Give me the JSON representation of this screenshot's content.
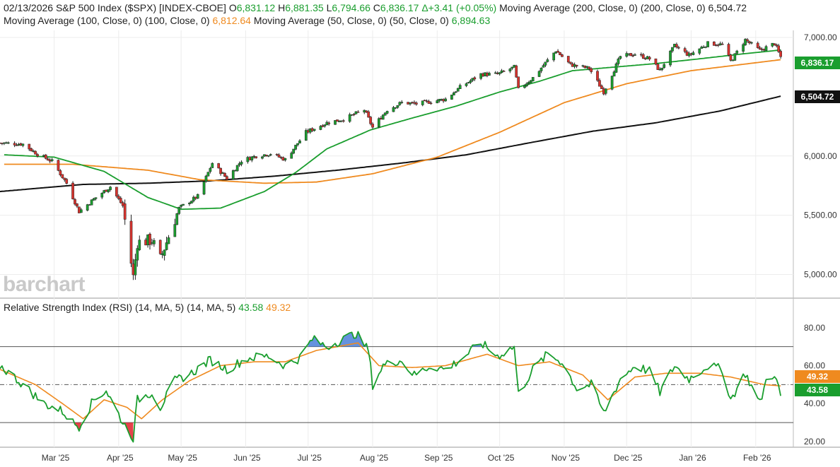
{
  "header": {
    "line1_label": "02/13/2026 S&P 500 Index ($SPX) [INDEX-CBOE] ",
    "o_prefix": "O",
    "o": "6,831.12",
    "h_prefix": "H",
    "h": "6,881.35",
    "l_prefix": "L",
    "l": "6,794.66",
    "c_prefix": "C",
    "c": "6,836.17",
    "change": "Δ+3.41 (+0.05%)",
    "ma200_label": "Moving Average (200, Close, 0) (200, Close, 0)",
    "ma200": "6,504.72",
    "ma100_label": "Moving Average (100, Close, 0) (100, Close, 0)",
    "ma100": "6,812.64",
    "ma50_label": "Moving Average (50, Close, 0) (50, Close, 0)",
    "ma50": "6,894.63"
  },
  "rsi_header": {
    "label": "Relative Strength Index (RSI) (14, MA, 5) (14, MA, 5)",
    "rsi": "43.58",
    "ma": "49.32"
  },
  "watermark": "barchart",
  "tags": {
    "close": "6,836.17",
    "ma200": "6,504.72",
    "rsi": "43.58",
    "rsi_ma": "49.32"
  },
  "colors": {
    "up": "#1a9e2e",
    "down": "#d9332e",
    "ma50": "#1a9e2e",
    "ma100": "#ef8a1f",
    "ma200": "#111111",
    "overbought": "#4a7fd8",
    "oversold": "#e0202a"
  },
  "chart_data": [
    {
      "type": "candlestick",
      "title": "S&P 500 Index ($SPX)",
      "ylim": [
        4800,
        7060
      ],
      "y_ticks": [
        "5,000.00",
        "5,500.00",
        "6,000.00",
        "7,000.00"
      ],
      "x_ticks": [
        "Mar '25",
        "Apr '25",
        "May '25",
        "Jun '25",
        "Jul '25",
        "Aug '25",
        "Sep '25",
        "Oct '25",
        "Nov '25",
        "Dec '25",
        "Jan '26",
        "Feb '26"
      ],
      "close_path": [
        [
          "2025-02-03",
          6110
        ],
        [
          "2025-02-14",
          6100
        ],
        [
          "2025-02-21",
          6015
        ],
        [
          "2025-02-28",
          5955
        ],
        [
          "2025-03-07",
          5770
        ],
        [
          "2025-03-13",
          5530
        ],
        [
          "2025-03-21",
          5650
        ],
        [
          "2025-03-28",
          5740
        ],
        [
          "2025-04-03",
          5580
        ],
        [
          "2025-04-08",
          4980
        ],
        [
          "2025-04-10",
          5270
        ],
        [
          "2025-04-17",
          5290
        ],
        [
          "2025-04-21",
          5130
        ],
        [
          "2025-04-30",
          5560
        ],
        [
          "2025-05-09",
          5660
        ],
        [
          "2025-05-16",
          5940
        ],
        [
          "2025-05-23",
          5810
        ],
        [
          "2025-05-30",
          5960
        ],
        [
          "2025-06-06",
          6000
        ],
        [
          "2025-06-13",
          6020
        ],
        [
          "2025-06-20",
          5970
        ],
        [
          "2025-06-30",
          6200
        ],
        [
          "2025-07-10",
          6280
        ],
        [
          "2025-07-18",
          6310
        ],
        [
          "2025-07-28",
          6390
        ],
        [
          "2025-08-01",
          6240
        ],
        [
          "2025-08-08",
          6390
        ],
        [
          "2025-08-15",
          6450
        ],
        [
          "2025-08-22",
          6440
        ],
        [
          "2025-08-29",
          6460
        ],
        [
          "2025-09-05",
          6480
        ],
        [
          "2025-09-12",
          6580
        ],
        [
          "2025-09-22",
          6690
        ],
        [
          "2025-09-30",
          6690
        ],
        [
          "2025-10-08",
          6750
        ],
        [
          "2025-10-10",
          6560
        ],
        [
          "2025-10-17",
          6660
        ],
        [
          "2025-10-28",
          6890
        ],
        [
          "2025-11-04",
          6770
        ],
        [
          "2025-11-13",
          6740
        ],
        [
          "2025-11-20",
          6540
        ],
        [
          "2025-11-28",
          6840
        ],
        [
          "2025-12-05",
          6860
        ],
        [
          "2025-12-12",
          6820
        ],
        [
          "2025-12-17",
          6720
        ],
        [
          "2025-12-24",
          6930
        ],
        [
          "2025-12-31",
          6850
        ],
        [
          "2026-01-09",
          6950
        ],
        [
          "2026-01-16",
          6940
        ],
        [
          "2026-01-20",
          6800
        ],
        [
          "2026-01-27",
          6980
        ],
        [
          "2026-02-03",
          6890
        ],
        [
          "2026-02-10",
          6950
        ],
        [
          "2026-02-13",
          6836.17
        ]
      ],
      "ma50_path": [
        [
          "2025-02-05",
          6010
        ],
        [
          "2025-03-01",
          5990
        ],
        [
          "2025-03-25",
          5870
        ],
        [
          "2025-04-15",
          5650
        ],
        [
          "2025-05-01",
          5550
        ],
        [
          "2025-05-20",
          5560
        ],
        [
          "2025-06-10",
          5700
        ],
        [
          "2025-06-25",
          5860
        ],
        [
          "2025-07-10",
          6060
        ],
        [
          "2025-07-31",
          6220
        ],
        [
          "2025-08-20",
          6320
        ],
        [
          "2025-09-10",
          6420
        ],
        [
          "2025-10-01",
          6540
        ],
        [
          "2025-10-20",
          6630
        ],
        [
          "2025-11-05",
          6720
        ],
        [
          "2025-11-25",
          6750
        ],
        [
          "2025-12-15",
          6780
        ],
        [
          "2026-01-05",
          6820
        ],
        [
          "2026-01-25",
          6860
        ],
        [
          "2026-02-13",
          6894.63
        ]
      ],
      "ma100_path": [
        [
          "2025-02-05",
          5930
        ],
        [
          "2025-03-10",
          5930
        ],
        [
          "2025-04-15",
          5880
        ],
        [
          "2025-05-10",
          5800
        ],
        [
          "2025-06-10",
          5770
        ],
        [
          "2025-07-05",
          5780
        ],
        [
          "2025-08-01",
          5850
        ],
        [
          "2025-09-01",
          5990
        ],
        [
          "2025-10-01",
          6200
        ],
        [
          "2025-11-01",
          6450
        ],
        [
          "2025-12-01",
          6610
        ],
        [
          "2026-01-01",
          6720
        ],
        [
          "2026-02-13",
          6812.64
        ]
      ],
      "ma200_path": [
        [
          "2025-02-03",
          5700
        ],
        [
          "2025-03-15",
          5760
        ],
        [
          "2025-04-15",
          5770
        ],
        [
          "2025-05-15",
          5790
        ],
        [
          "2025-06-15",
          5830
        ],
        [
          "2025-07-15",
          5880
        ],
        [
          "2025-08-15",
          5940
        ],
        [
          "2025-09-15",
          6010
        ],
        [
          "2025-10-15",
          6110
        ],
        [
          "2025-11-15",
          6210
        ],
        [
          "2025-12-15",
          6280
        ],
        [
          "2026-01-15",
          6380
        ],
        [
          "2026-02-13",
          6504.72
        ]
      ]
    },
    {
      "type": "line",
      "title": "Relative Strength Index (RSI) (14, MA, 5)",
      "ylim": [
        17,
        87
      ],
      "y_ticks": [
        "20.00",
        "40.00",
        "60.00",
        "80.00"
      ],
      "overbought": 70,
      "oversold": 30,
      "midline": 50,
      "rsi_path": [
        [
          "2025-02-03",
          60
        ],
        [
          "2025-02-12",
          52
        ],
        [
          "2025-02-24",
          40
        ],
        [
          "2025-03-05",
          36
        ],
        [
          "2025-03-10",
          30
        ],
        [
          "2025-03-13",
          28
        ],
        [
          "2025-03-20",
          42
        ],
        [
          "2025-03-26",
          47
        ],
        [
          "2025-04-03",
          30
        ],
        [
          "2025-04-08",
          22
        ],
        [
          "2025-04-10",
          42
        ],
        [
          "2025-04-17",
          46
        ],
        [
          "2025-04-21",
          38
        ],
        [
          "2025-04-28",
          52
        ],
        [
          "2025-05-06",
          56
        ],
        [
          "2025-05-15",
          63
        ],
        [
          "2025-05-23",
          58
        ],
        [
          "2025-06-02",
          64
        ],
        [
          "2025-06-12",
          65
        ],
        [
          "2025-06-20",
          60
        ],
        [
          "2025-06-27",
          64
        ],
        [
          "2025-07-03",
          74
        ],
        [
          "2025-07-10",
          70
        ],
        [
          "2025-07-24",
          77
        ],
        [
          "2025-07-30",
          68
        ],
        [
          "2025-08-01",
          50
        ],
        [
          "2025-08-06",
          60
        ],
        [
          "2025-08-14",
          63
        ],
        [
          "2025-08-21",
          55
        ],
        [
          "2025-08-29",
          60
        ],
        [
          "2025-09-05",
          58
        ],
        [
          "2025-09-12",
          63
        ],
        [
          "2025-09-22",
          72
        ],
        [
          "2025-09-30",
          65
        ],
        [
          "2025-10-08",
          70
        ],
        [
          "2025-10-10",
          45
        ],
        [
          "2025-10-17",
          58
        ],
        [
          "2025-10-24",
          66
        ],
        [
          "2025-10-31",
          62
        ],
        [
          "2025-11-07",
          48
        ],
        [
          "2025-11-14",
          50
        ],
        [
          "2025-11-20",
          35
        ],
        [
          "2025-11-28",
          53
        ],
        [
          "2025-12-05",
          60
        ],
        [
          "2025-12-12",
          57
        ],
        [
          "2025-12-17",
          46
        ],
        [
          "2025-12-24",
          60
        ],
        [
          "2025-12-31",
          53
        ],
        [
          "2026-01-09",
          60
        ],
        [
          "2026-01-16",
          58
        ],
        [
          "2026-01-20",
          42
        ],
        [
          "2026-01-27",
          56
        ],
        [
          "2026-02-03",
          40
        ],
        [
          "2026-02-06",
          52
        ],
        [
          "2026-02-10",
          56
        ],
        [
          "2026-02-13",
          43.58
        ]
      ],
      "rsi_ma_path": [
        [
          "2025-02-03",
          58
        ],
        [
          "2025-02-20",
          50
        ],
        [
          "2025-03-05",
          40
        ],
        [
          "2025-03-15",
          32
        ],
        [
          "2025-03-25",
          42
        ],
        [
          "2025-04-05",
          38
        ],
        [
          "2025-04-12",
          32
        ],
        [
          "2025-04-22",
          42
        ],
        [
          "2025-05-05",
          52
        ],
        [
          "2025-05-20",
          60
        ],
        [
          "2025-06-05",
          62
        ],
        [
          "2025-06-20",
          62
        ],
        [
          "2025-07-05",
          68
        ],
        [
          "2025-07-25",
          72
        ],
        [
          "2025-08-04",
          60
        ],
        [
          "2025-08-20",
          59
        ],
        [
          "2025-09-05",
          60
        ],
        [
          "2025-09-25",
          66
        ],
        [
          "2025-10-10",
          60
        ],
        [
          "2025-10-25",
          62
        ],
        [
          "2025-11-10",
          55
        ],
        [
          "2025-11-22",
          42
        ],
        [
          "2025-12-05",
          54
        ],
        [
          "2025-12-20",
          56
        ],
        [
          "2026-01-05",
          56
        ],
        [
          "2026-01-20",
          54
        ],
        [
          "2026-02-05",
          50
        ],
        [
          "2026-02-13",
          49.32
        ]
      ]
    }
  ]
}
